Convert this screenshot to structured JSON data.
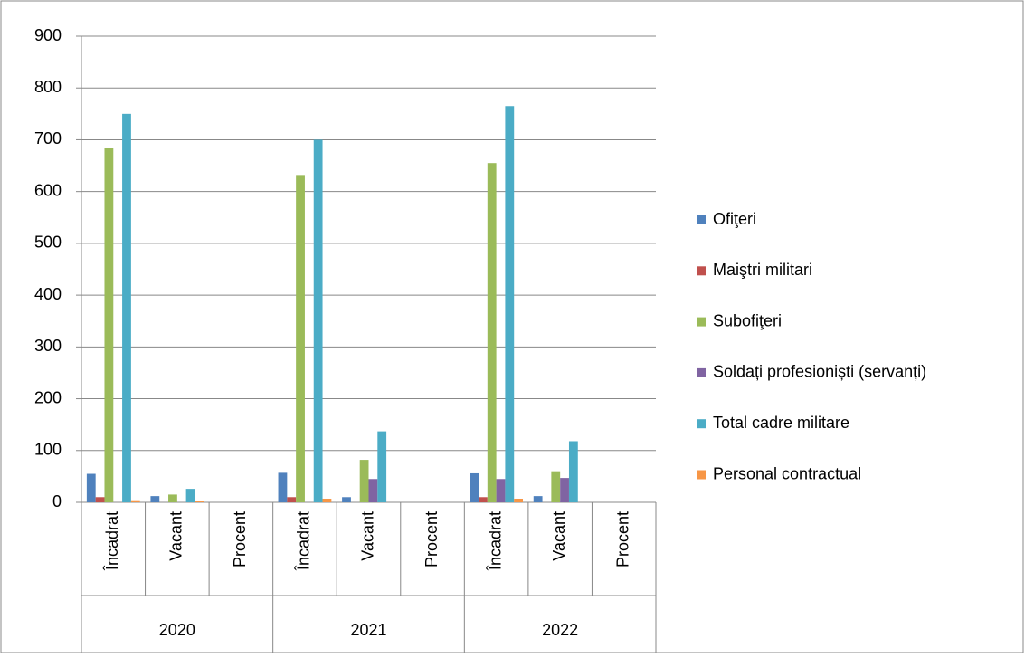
{
  "chart_data": {
    "type": "bar",
    "categories": [
      "Încadrat",
      "Vacant",
      "Procent",
      "Încadrat",
      "Vacant",
      "Procent",
      "Încadrat",
      "Vacant",
      "Procent"
    ],
    "groups": [
      "2020",
      "2021",
      "2022"
    ],
    "series": [
      {
        "name": "Ofiţeri",
        "color": "#4f81bd",
        "values": [
          55,
          12,
          null,
          57,
          10,
          null,
          56,
          12,
          null
        ]
      },
      {
        "name": "Maiştri militari",
        "color": "#c0504d",
        "values": [
          10,
          0,
          null,
          10,
          0,
          null,
          10,
          0,
          null
        ]
      },
      {
        "name": "Subofiţeri",
        "color": "#9bbb59",
        "values": [
          685,
          15,
          null,
          632,
          82,
          null,
          655,
          60,
          null
        ]
      },
      {
        "name": "Soldați profesioniști (servanți)",
        "color": "#8064a2",
        "values": [
          0,
          0,
          null,
          0,
          45,
          null,
          45,
          47,
          null
        ]
      },
      {
        "name": "Total cadre militare",
        "color": "#4bacc6",
        "values": [
          750,
          26,
          null,
          700,
          137,
          null,
          765,
          118,
          null
        ]
      },
      {
        "name": "Personal contractual",
        "color": "#f79646",
        "values": [
          4,
          2,
          null,
          7,
          0,
          null,
          7,
          0,
          null
        ]
      }
    ],
    "ylim": [
      0,
      900
    ],
    "yticks": [
      0,
      100,
      200,
      300,
      400,
      500,
      600,
      700,
      800,
      900
    ],
    "grid": true,
    "legend": "right"
  }
}
